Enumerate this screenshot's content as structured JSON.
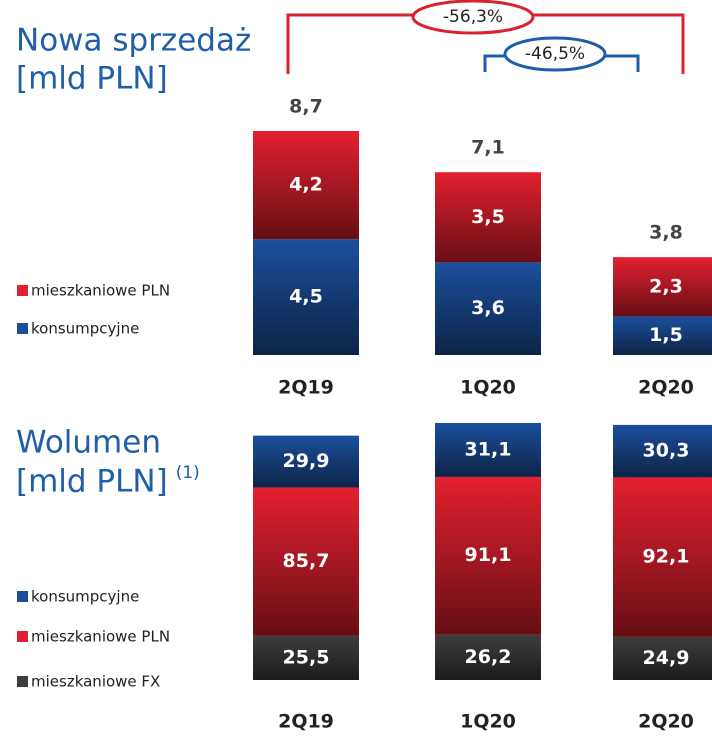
{
  "chart_data": [
    {
      "type": "stacked-bar",
      "title": "Nowa sprzedaż",
      "subtitle": "[mld PLN]",
      "categories": [
        "2Q19",
        "1Q20",
        "2Q20"
      ],
      "series": [
        {
          "name": "konsumpcyjne",
          "color": "#1b4f9c",
          "values": [
            4.5,
            3.6,
            1.5
          ],
          "value_labels": [
            "4,5",
            "3,6",
            "1,5"
          ]
        },
        {
          "name": "mieszkaniowe PLN",
          "color": "#e3202f",
          "values": [
            4.2,
            3.5,
            2.3
          ],
          "value_labels": [
            "4,2",
            "3,5",
            "2,3"
          ]
        }
      ],
      "totals": [
        8.7,
        7.1,
        3.8
      ],
      "total_labels": [
        "8,7",
        "7,1",
        "3,8"
      ],
      "annotations": [
        "-56,3%",
        "-46,5%"
      ]
    },
    {
      "type": "stacked-bar",
      "title": "Wolumen",
      "subtitle": "[mld PLN]",
      "footnote_marker": "(1)",
      "categories": [
        "2Q19",
        "1Q20",
        "2Q20"
      ],
      "series": [
        {
          "name": "mieszkaniowe FX",
          "color": "#3d3d3d",
          "values": [
            25.5,
            26.2,
            24.9
          ],
          "value_labels": [
            "25,5",
            "26,2",
            "24,9"
          ]
        },
        {
          "name": "mieszkaniowe PLN",
          "color": "#e3202f",
          "values": [
            85.7,
            91.1,
            92.1
          ],
          "value_labels": [
            "85,7",
            "91,1",
            "92,1"
          ]
        },
        {
          "name": "konsumpcyjne",
          "color": "#1b4f9c",
          "values": [
            29.9,
            31.1,
            30.3
          ],
          "value_labels": [
            "29,9",
            "31,1",
            "30,3"
          ]
        }
      ]
    }
  ]
}
